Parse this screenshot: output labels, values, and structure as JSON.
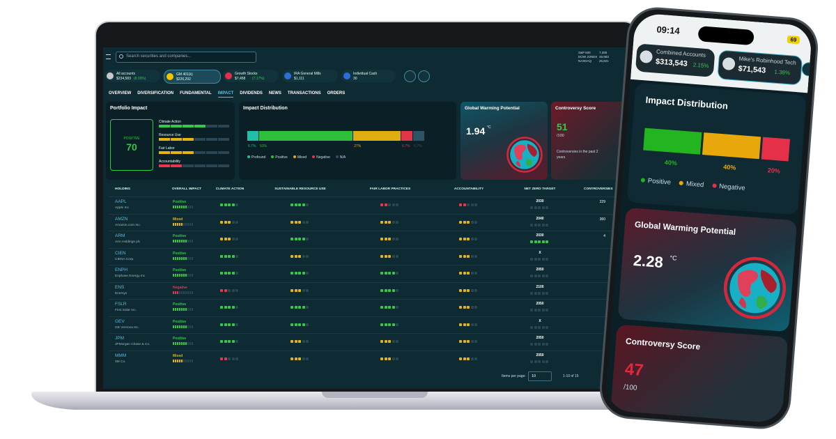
{
  "laptop": {
    "search_placeholder": "Search securities and companies...",
    "market": [
      {
        "name": "S&P 500",
        "value": "7,355"
      },
      {
        "name": "DOW JONES",
        "value": "49,983"
      },
      {
        "name": "NASDAQ",
        "value": "26,821"
      }
    ],
    "accounts": [
      {
        "name": "All accounts",
        "value": "$234,583",
        "change": "(8.03%)"
      },
      {
        "name": "GM 401(k)",
        "value": "$226,292"
      },
      {
        "name": "Growth Stocks",
        "value": "$7,458",
        "change": "(7.17%)"
      },
      {
        "name": "IRA General Mills",
        "value": "$1,111"
      },
      {
        "name": "Individual Cash",
        "value": "30"
      }
    ],
    "active_account": 1,
    "tabs": [
      "OVERVIEW",
      "DIVERSIFICATION",
      "FUNDAMENTAL",
      "IMPACT",
      "DIVIDENDS",
      "NEWS",
      "TRANSACTIONS",
      "ORDERS"
    ],
    "active_tab": 3,
    "portfolio_impact": {
      "title": "Portfolio Impact",
      "rating": "POSITIVE",
      "score": 70,
      "categories": [
        {
          "name": "Climate Action",
          "level": 4
        },
        {
          "name": "Resource Use",
          "level": 3
        },
        {
          "name": "Fair Labor",
          "level": 3
        },
        {
          "name": "Accountability",
          "level": 2
        }
      ]
    },
    "impact_distribution": {
      "title": "Impact Distribution",
      "names": [
        "Profound",
        "Positive",
        "Mixed",
        "Negative",
        "N/A"
      ],
      "values": [
        6.7,
        53,
        27,
        6.7,
        6.7
      ],
      "value_labels": [
        "6.7%",
        "53%",
        "27%",
        "6.7%",
        "6.7%"
      ],
      "colors": [
        "#1fc0a8",
        "#2fbf3a",
        "#e0ad10",
        "#e0354a",
        "#2c5466"
      ]
    },
    "global_warming": {
      "title": "Global Warming Potential",
      "value": 1.94,
      "unit": "°C"
    },
    "controversy": {
      "title": "Controversy Score",
      "value": 51,
      "scale": "/100",
      "note": "Controversies in the past 2 years"
    },
    "table": {
      "headers": [
        "HOLDING",
        "OVERALL IMPACT",
        "CLIMATE ACTION",
        "SUSTAINABLE RESOURCE USE",
        "FAIR LABOR PRACTICES",
        "ACCOUNTABILITY",
        "NET ZERO TARGET",
        "CONTROVERSIES"
      ],
      "rows": [
        {
          "ticker": "AAPL",
          "name": "Apple Inc",
          "overall": "Positive",
          "overall_score": 7,
          "ratings": [
            4,
            4,
            2,
            2
          ],
          "net_zero": "2030",
          "net_zero_dots": 0,
          "controversies": 229
        },
        {
          "ticker": "AMZN",
          "name": "Amazon.com Inc.",
          "overall": "Mixed",
          "overall_score": 5,
          "ratings": [
            3,
            3,
            3,
            3
          ],
          "net_zero": "2040",
          "net_zero_dots": 0,
          "controversies": 360
        },
        {
          "ticker": "ARM",
          "name": "Arm Holdings plc",
          "overall": "Positive",
          "overall_score": 7,
          "ratings": [
            3,
            4,
            3,
            3
          ],
          "net_zero": "2030",
          "net_zero_dots": 5,
          "controversies": 4
        },
        {
          "ticker": "CIEN",
          "name": "CIENA Corp.",
          "overall": "Positive",
          "overall_score": 7,
          "ratings": [
            4,
            3,
            3,
            3
          ],
          "net_zero": "X",
          "net_zero_dots": 0
        },
        {
          "ticker": "ENPH",
          "name": "Enphase Energy Inc",
          "overall": "Positive",
          "overall_score": 7,
          "ratings": [
            4,
            4,
            4,
            3
          ],
          "net_zero": "2050",
          "net_zero_dots": 0
        },
        {
          "ticker": "ENS",
          "name": "Enersys",
          "overall": "Negative",
          "overall_score": 3,
          "ratings": [
            2,
            3,
            4,
            3
          ],
          "net_zero": "2100",
          "net_zero_dots": 0
        },
        {
          "ticker": "FSLR",
          "name": "First Solar Inc.",
          "overall": "Positive",
          "overall_score": 7,
          "ratings": [
            4,
            4,
            4,
            3
          ],
          "net_zero": "2050",
          "net_zero_dots": 0
        },
        {
          "ticker": "GEV",
          "name": "GE Vernova Inc.",
          "overall": "Positive",
          "overall_score": 7,
          "ratings": [
            4,
            4,
            4,
            3
          ],
          "net_zero": "X",
          "net_zero_dots": 0
        },
        {
          "ticker": "JPM",
          "name": "JPMorgan Chase & Co.",
          "overall": "Positive",
          "overall_score": 7,
          "ratings": [
            4,
            3,
            3,
            3
          ],
          "net_zero": "2050",
          "net_zero_dots": 0
        },
        {
          "ticker": "MMM",
          "name": "3M Co.",
          "overall": "Mixed",
          "overall_score": 5,
          "ratings": [
            2,
            3,
            3,
            3
          ],
          "net_zero": "2050",
          "net_zero_dots": 0
        }
      ]
    },
    "pagination": {
      "label": "Items per page:",
      "size": 10,
      "range": "1-10 of 15"
    }
  },
  "phone": {
    "time": "09:14",
    "battery": 69,
    "accounts": [
      {
        "name": "Combined Accounts",
        "value": "$313,543",
        "change": "2.15%"
      },
      {
        "name": "Mike's Robinhood Tech",
        "value": "$71,543",
        "change": "1.38%"
      }
    ],
    "impact_distribution": {
      "title": "Impact Distribution",
      "names": [
        "Positive",
        "Mixed",
        "Negative"
      ],
      "values": [
        40,
        40,
        20
      ],
      "value_labels": [
        "40%",
        "40%",
        "20%"
      ],
      "colors": [
        "#22b51f",
        "#e8a80c",
        "#e5304a"
      ]
    },
    "global_warming": {
      "title": "Global Warming Potential",
      "value": 2.28,
      "unit": "°C"
    },
    "controversy": {
      "title": "Controversy Score",
      "value": 47,
      "scale": "/100"
    }
  }
}
